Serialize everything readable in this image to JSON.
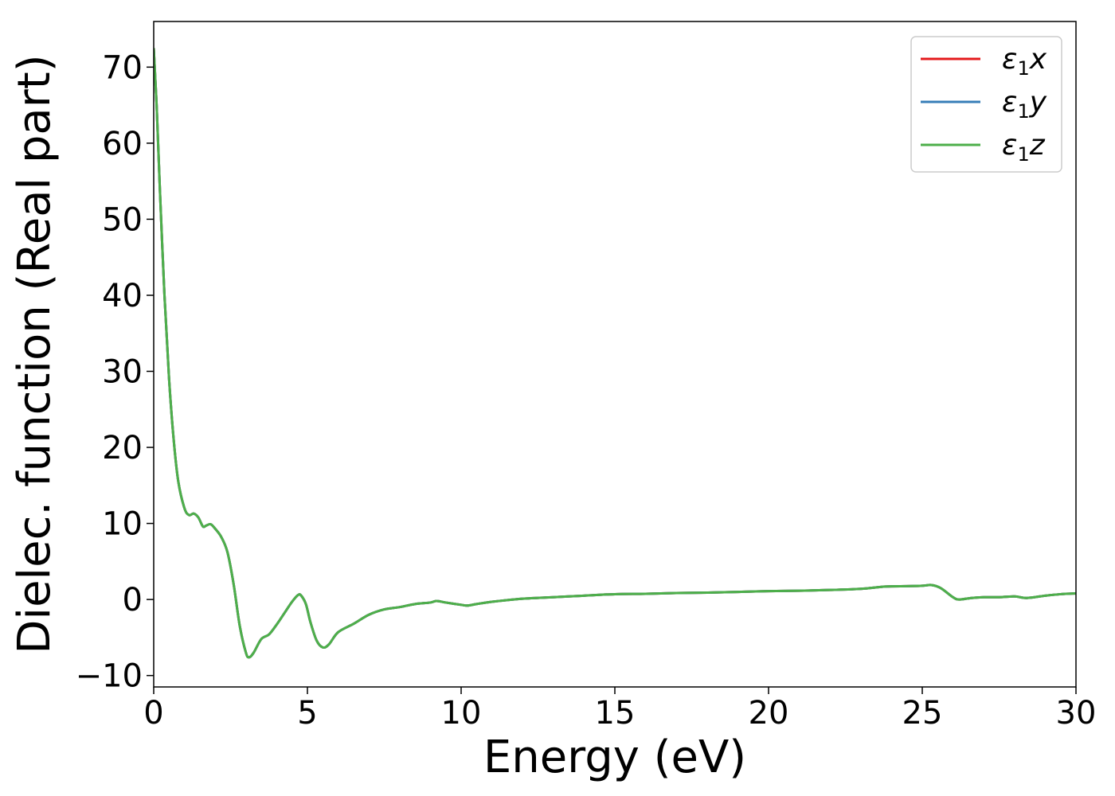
{
  "chart_data": {
    "type": "line",
    "xlabel": "Energy (eV)",
    "ylabel": "Dielec. function (Real part)",
    "xlim": [
      0,
      30
    ],
    "ylim": [
      -11.5,
      76
    ],
    "xticks": [
      0,
      5,
      10,
      15,
      20,
      25,
      30
    ],
    "yticks": [
      -10,
      0,
      10,
      20,
      30,
      40,
      50,
      60,
      70
    ],
    "xtick_labels": [
      "0",
      "5",
      "10",
      "15",
      "20",
      "25",
      "30"
    ],
    "ytick_labels": [
      "−10",
      "0",
      "10",
      "20",
      "30",
      "40",
      "50",
      "60",
      "70"
    ],
    "grid": false,
    "legend_position": "top-right",
    "series": [
      {
        "name": "ε",
        "sub": "1",
        "suffix": "x",
        "color": "#e41a1c"
      },
      {
        "name": "ε",
        "sub": "1",
        "suffix": "y",
        "color": "#377eb8"
      },
      {
        "name": "ε",
        "sub": "1",
        "suffix": "z",
        "color": "#4daf4a"
      }
    ],
    "x": [
      0,
      0.1,
      0.2,
      0.35,
      0.5,
      0.65,
      0.8,
      1.0,
      1.15,
      1.3,
      1.45,
      1.6,
      1.7,
      1.85,
      2.0,
      2.2,
      2.4,
      2.6,
      2.8,
      3.0,
      3.1,
      3.25,
      3.5,
      3.75,
      4.0,
      4.25,
      4.5,
      4.7,
      4.8,
      4.95,
      5.1,
      5.3,
      5.5,
      5.7,
      6.0,
      6.5,
      7.0,
      7.5,
      8.0,
      8.5,
      9.0,
      9.2,
      9.5,
      10.0,
      10.2,
      10.5,
      11.0,
      12.0,
      13.0,
      14.0,
      15.0,
      16.0,
      17.0,
      18.0,
      19.0,
      20.0,
      21.0,
      22.0,
      23.0,
      23.8,
      24.5,
      25.0,
      25.3,
      25.6,
      26.0,
      26.2,
      26.6,
      27.0,
      27.5,
      28.0,
      28.4,
      29.0,
      29.5,
      30.0
    ],
    "values": [
      72.5,
      64.5,
      54,
      40,
      29,
      21,
      15.5,
      12,
      11.1,
      11.3,
      10.8,
      9.6,
      9.7,
      9.9,
      9.3,
      8.2,
      6.2,
      2.0,
      -3.5,
      -7.0,
      -7.6,
      -7.0,
      -5.2,
      -4.6,
      -3.3,
      -1.8,
      -0.3,
      0.6,
      0.5,
      -0.6,
      -3.0,
      -5.4,
      -6.3,
      -5.9,
      -4.3,
      -3.2,
      -2.0,
      -1.3,
      -1.0,
      -0.6,
      -0.4,
      -0.2,
      -0.4,
      -0.7,
      -0.8,
      -0.6,
      -0.3,
      0.1,
      0.3,
      0.5,
      0.7,
      0.75,
      0.85,
      0.9,
      1.0,
      1.1,
      1.15,
      1.25,
      1.4,
      1.7,
      1.75,
      1.8,
      1.9,
      1.5,
      0.3,
      0.0,
      0.2,
      0.3,
      0.3,
      0.4,
      0.2,
      0.5,
      0.7,
      0.8
    ]
  }
}
